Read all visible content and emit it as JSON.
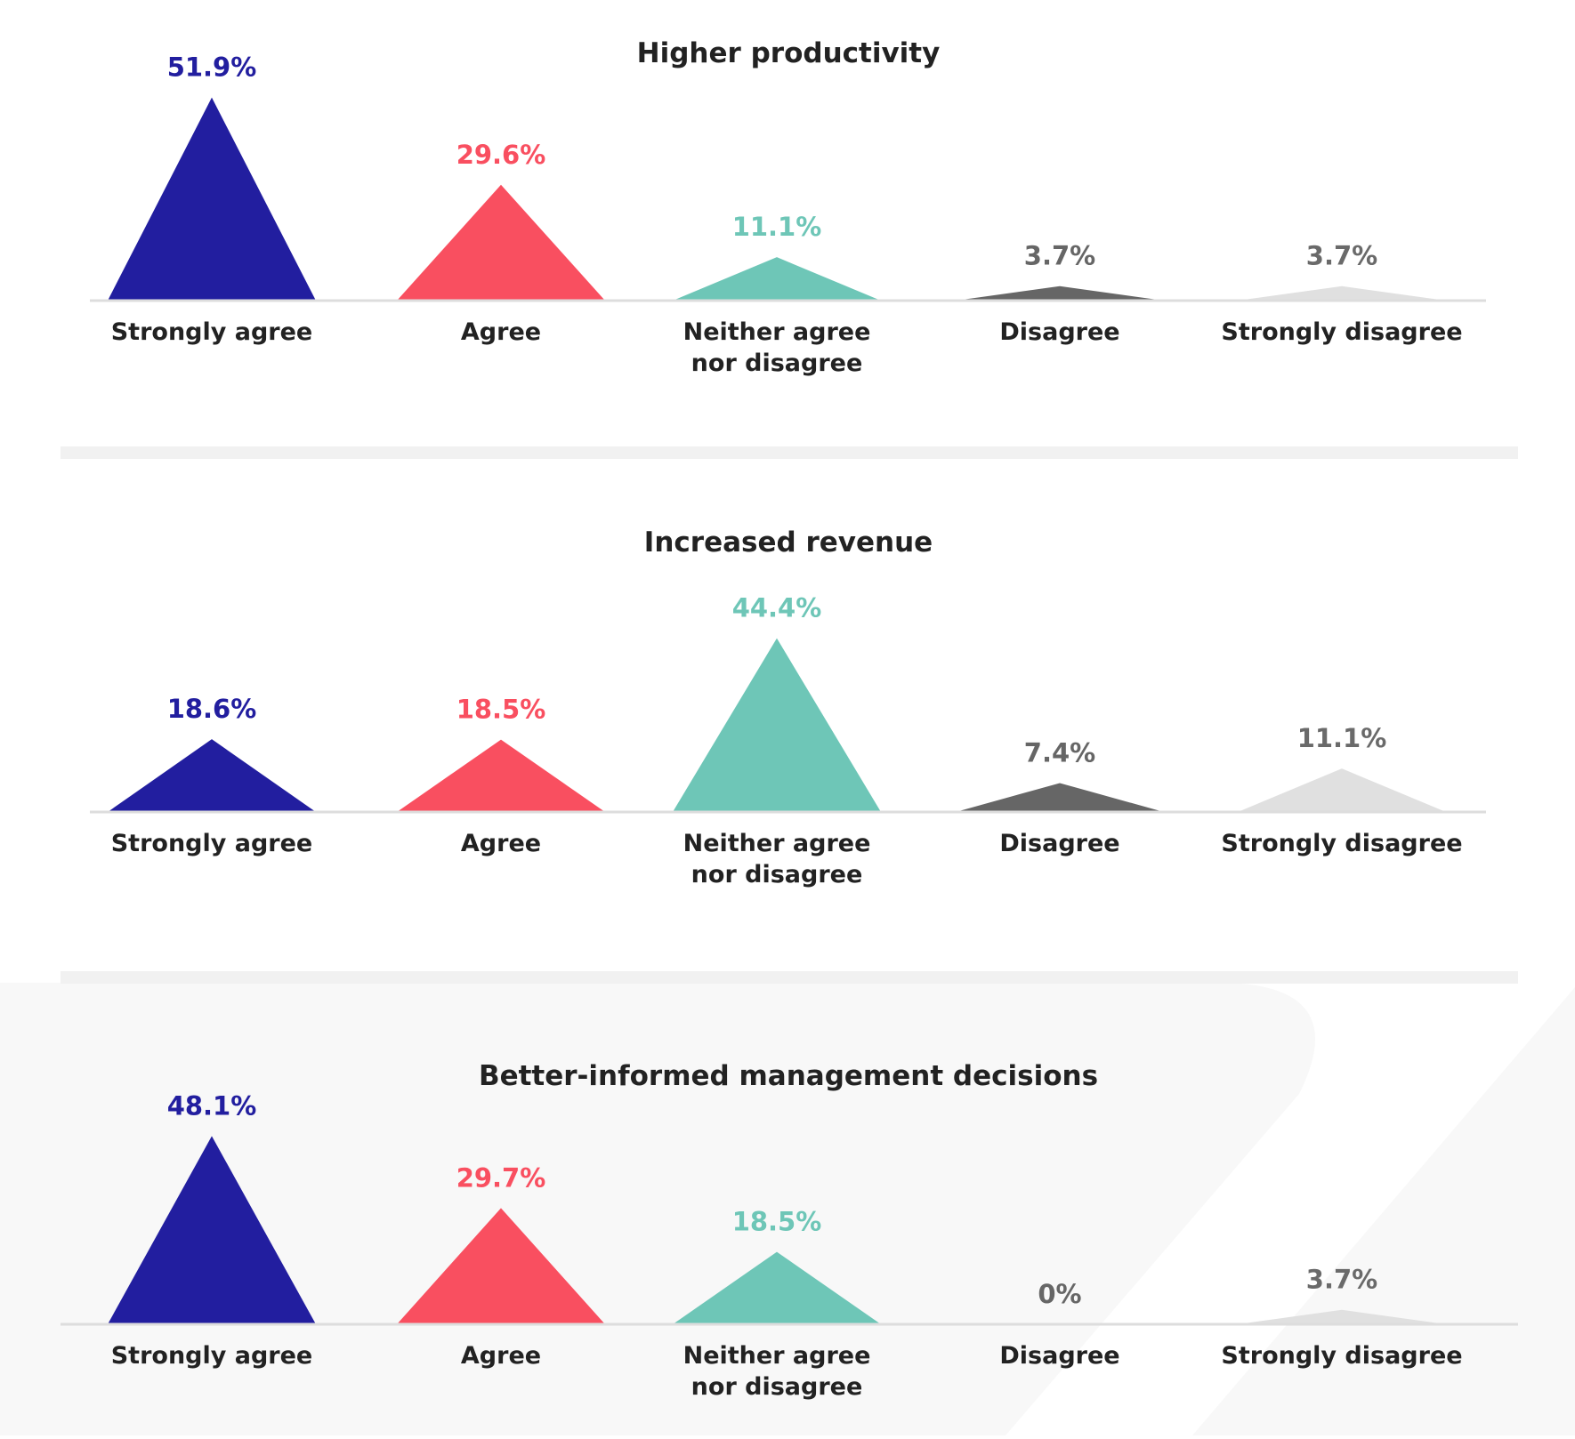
{
  "palette": {
    "strongly_agree": "#221e9f",
    "agree": "#f94f60",
    "neither": "#6ec6b7",
    "disagree": "#666666",
    "strongly_disagree": "#e0e0e0",
    "value_label_strongly_disagree": "#6a6a6a",
    "baseline": "#dddddd",
    "divider": "#f1f1f1",
    "background_tint": "#f8f8f8"
  },
  "chart_data": [
    {
      "type": "bar",
      "mark": "triangle",
      "title": "Higher productivity",
      "categories": [
        "Strongly agree",
        "Agree",
        "Neither agree nor disagree",
        "Disagree",
        "Strongly disagree"
      ],
      "values": [
        51.9,
        29.6,
        11.1,
        3.7,
        3.7
      ],
      "value_labels": [
        "51.9%",
        "29.6%",
        "11.1%",
        "3.7%",
        "3.7%"
      ],
      "unit": "%"
    },
    {
      "type": "bar",
      "mark": "triangle",
      "title": "Increased revenue",
      "categories": [
        "Strongly agree",
        "Agree",
        "Neither agree nor disagree",
        "Disagree",
        "Strongly disagree"
      ],
      "values": [
        18.6,
        18.5,
        44.4,
        7.4,
        11.1
      ],
      "value_labels": [
        "18.6%",
        "18.5%",
        "44.4%",
        "7.4%",
        "11.1%"
      ],
      "unit": "%"
    },
    {
      "type": "bar",
      "mark": "triangle",
      "title": "Better-informed management decisions",
      "categories": [
        "Strongly agree",
        "Agree",
        "Neither agree nor disagree",
        "Disagree",
        "Strongly disagree"
      ],
      "values": [
        48.1,
        29.7,
        18.5,
        0,
        3.7
      ],
      "value_labels": [
        "48.1%",
        "29.7%",
        "18.5%",
        "0%",
        "3.7%"
      ],
      "unit": "%"
    }
  ]
}
